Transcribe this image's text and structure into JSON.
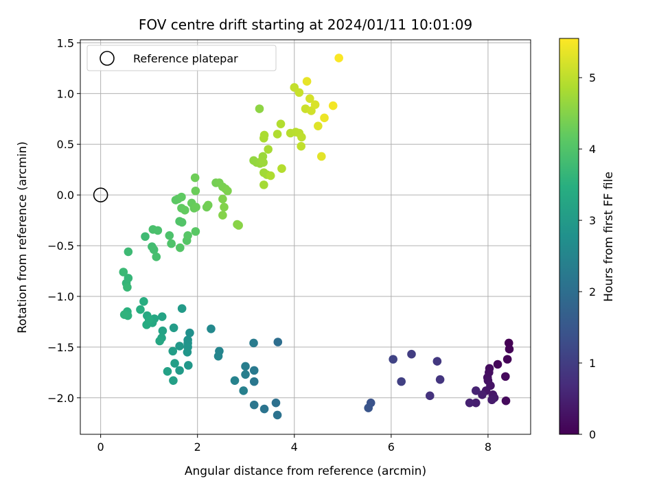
{
  "chart_data": {
    "type": "scatter",
    "title": "FOV centre drift starting at 2024/01/11 10:01:09",
    "xlabel": "Angular distance from reference (arcmin)",
    "ylabel": "Rotation from reference (arcmin)",
    "xlim": [
      -0.42,
      8.88
    ],
    "ylim": [
      -2.36,
      1.53
    ],
    "xticks": [
      "0",
      "2",
      "4",
      "6",
      "8"
    ],
    "yticks": [
      "−2.0",
      "−1.5",
      "−1.0",
      "−0.5",
      "0.0",
      "0.5",
      "1.0",
      "1.5"
    ],
    "grid": true,
    "legend": {
      "label": "Reference platepar",
      "placement": "top-left"
    },
    "reference_point": {
      "x": 0.0,
      "y": 0.0
    },
    "colorbar": {
      "label": "Hours from first FF file",
      "colormap": "viridis",
      "range": [
        0,
        5.55
      ],
      "ticks": [
        "0",
        "1",
        "2",
        "3",
        "4",
        "5"
      ]
    },
    "points": [
      {
        "x": 8.43,
        "y": -1.46,
        "t": 0.0
      },
      {
        "x": 8.44,
        "y": -1.52,
        "t": 0.03
      },
      {
        "x": 8.4,
        "y": -1.62,
        "t": 0.06
      },
      {
        "x": 8.2,
        "y": -1.67,
        "t": 0.09
      },
      {
        "x": 8.36,
        "y": -1.79,
        "t": 0.12
      },
      {
        "x": 8.37,
        "y": -2.03,
        "t": 0.15
      },
      {
        "x": 8.03,
        "y": -1.71,
        "t": 0.18
      },
      {
        "x": 8.02,
        "y": -1.75,
        "t": 0.21
      },
      {
        "x": 7.99,
        "y": -1.8,
        "t": 0.24
      },
      {
        "x": 8.0,
        "y": -1.83,
        "t": 0.27
      },
      {
        "x": 8.05,
        "y": -1.88,
        "t": 0.3
      },
      {
        "x": 7.96,
        "y": -1.93,
        "t": 0.33
      },
      {
        "x": 8.1,
        "y": -1.97,
        "t": 0.36
      },
      {
        "x": 8.13,
        "y": -2.0,
        "t": 0.39
      },
      {
        "x": 8.08,
        "y": -2.02,
        "t": 0.42
      },
      {
        "x": 7.88,
        "y": -1.97,
        "t": 0.45
      },
      {
        "x": 7.75,
        "y": -2.05,
        "t": 0.48
      },
      {
        "x": 7.62,
        "y": -2.05,
        "t": 0.51
      },
      {
        "x": 7.75,
        "y": -1.93,
        "t": 0.54
      },
      {
        "x": 6.8,
        "y": -1.98,
        "t": 0.8
      },
      {
        "x": 7.01,
        "y": -1.82,
        "t": 0.85
      },
      {
        "x": 6.95,
        "y": -1.64,
        "t": 0.9
      },
      {
        "x": 6.42,
        "y": -1.57,
        "t": 1.0
      },
      {
        "x": 6.21,
        "y": -1.84,
        "t": 1.05
      },
      {
        "x": 6.04,
        "y": -1.62,
        "t": 1.1
      },
      {
        "x": 5.58,
        "y": -2.05,
        "t": 1.4
      },
      {
        "x": 5.53,
        "y": -2.1,
        "t": 1.45
      },
      {
        "x": 3.66,
        "y": -1.45,
        "t": 2.0
      },
      {
        "x": 3.62,
        "y": -2.05,
        "t": 2.05
      },
      {
        "x": 3.65,
        "y": -2.17,
        "t": 2.08
      },
      {
        "x": 3.38,
        "y": -2.11,
        "t": 2.12
      },
      {
        "x": 3.17,
        "y": -2.07,
        "t": 2.16
      },
      {
        "x": 3.17,
        "y": -1.84,
        "t": 2.2
      },
      {
        "x": 3.17,
        "y": -1.73,
        "t": 2.24
      },
      {
        "x": 3.16,
        "y": -1.46,
        "t": 2.28
      },
      {
        "x": 2.99,
        "y": -1.69,
        "t": 2.32
      },
      {
        "x": 2.99,
        "y": -1.77,
        "t": 2.36
      },
      {
        "x": 2.95,
        "y": -1.93,
        "t": 2.4
      },
      {
        "x": 2.77,
        "y": -1.83,
        "t": 2.44
      },
      {
        "x": 2.45,
        "y": -1.54,
        "t": 2.5
      },
      {
        "x": 2.43,
        "y": -1.59,
        "t": 2.54
      },
      {
        "x": 2.28,
        "y": -1.32,
        "t": 2.6
      },
      {
        "x": 1.84,
        "y": -1.36,
        "t": 2.75
      },
      {
        "x": 1.8,
        "y": -1.43,
        "t": 2.8
      },
      {
        "x": 1.8,
        "y": -1.46,
        "t": 2.83
      },
      {
        "x": 1.8,
        "y": -1.5,
        "t": 2.86
      },
      {
        "x": 1.79,
        "y": -1.55,
        "t": 2.89
      },
      {
        "x": 1.81,
        "y": -1.68,
        "t": 2.92
      },
      {
        "x": 1.63,
        "y": -1.49,
        "t": 2.95
      },
      {
        "x": 1.63,
        "y": -1.73,
        "t": 2.98
      },
      {
        "x": 1.68,
        "y": -1.12,
        "t": 3.0
      },
      {
        "x": 1.51,
        "y": -1.31,
        "t": 3.03
      },
      {
        "x": 1.49,
        "y": -1.54,
        "t": 3.06
      },
      {
        "x": 1.53,
        "y": -1.66,
        "t": 3.09
      },
      {
        "x": 1.5,
        "y": -1.83,
        "t": 3.12
      },
      {
        "x": 1.38,
        "y": -1.74,
        "t": 3.15
      },
      {
        "x": 1.28,
        "y": -1.34,
        "t": 3.18
      },
      {
        "x": 1.27,
        "y": -1.2,
        "t": 3.21
      },
      {
        "x": 1.26,
        "y": -1.41,
        "t": 3.24
      },
      {
        "x": 1.22,
        "y": -1.44,
        "t": 3.27
      },
      {
        "x": 1.11,
        "y": -1.22,
        "t": 3.3
      },
      {
        "x": 1.07,
        "y": -1.26,
        "t": 3.33
      },
      {
        "x": 0.96,
        "y": -1.19,
        "t": 3.36
      },
      {
        "x": 0.95,
        "y": -1.28,
        "t": 3.39
      },
      {
        "x": 1.0,
        "y": -1.23,
        "t": 3.42
      },
      {
        "x": 0.89,
        "y": -1.05,
        "t": 3.45
      },
      {
        "x": 0.82,
        "y": -1.13,
        "t": 3.48
      },
      {
        "x": 0.55,
        "y": -1.15,
        "t": 3.51
      },
      {
        "x": 0.56,
        "y": -1.19,
        "t": 3.54
      },
      {
        "x": 0.49,
        "y": -1.18,
        "t": 3.57
      },
      {
        "x": 0.53,
        "y": -0.87,
        "t": 3.62
      },
      {
        "x": 0.57,
        "y": -0.82,
        "t": 3.66
      },
      {
        "x": 0.55,
        "y": -0.91,
        "t": 3.69
      },
      {
        "x": 0.47,
        "y": -0.76,
        "t": 3.72
      },
      {
        "x": 0.57,
        "y": -0.56,
        "t": 3.75
      },
      {
        "x": 0.92,
        "y": -0.41,
        "t": 3.78
      },
      {
        "x": 1.06,
        "y": -0.51,
        "t": 3.81
      },
      {
        "x": 1.1,
        "y": -0.54,
        "t": 3.84
      },
      {
        "x": 1.15,
        "y": -0.61,
        "t": 3.87
      },
      {
        "x": 1.08,
        "y": -0.34,
        "t": 3.9
      },
      {
        "x": 1.18,
        "y": -0.35,
        "t": 3.92
      },
      {
        "x": 1.42,
        "y": -0.4,
        "t": 3.95
      },
      {
        "x": 1.46,
        "y": -0.48,
        "t": 3.97
      },
      {
        "x": 1.63,
        "y": -0.26,
        "t": 4.0
      },
      {
        "x": 1.68,
        "y": -0.27,
        "t": 4.02
      },
      {
        "x": 1.64,
        "y": -0.52,
        "t": 4.04
      },
      {
        "x": 1.78,
        "y": -0.45,
        "t": 4.06
      },
      {
        "x": 1.8,
        "y": -0.4,
        "t": 4.08
      },
      {
        "x": 1.96,
        "y": -0.36,
        "t": 4.1
      },
      {
        "x": 1.55,
        "y": -0.05,
        "t": 4.12
      },
      {
        "x": 1.6,
        "y": -0.04,
        "t": 4.14
      },
      {
        "x": 1.67,
        "y": -0.02,
        "t": 4.16
      },
      {
        "x": 1.67,
        "y": -0.13,
        "t": 4.18
      },
      {
        "x": 1.74,
        "y": -0.15,
        "t": 4.2
      },
      {
        "x": 1.88,
        "y": -0.08,
        "t": 4.22
      },
      {
        "x": 1.93,
        "y": -0.13,
        "t": 4.24
      },
      {
        "x": 1.97,
        "y": -0.12,
        "t": 4.26
      },
      {
        "x": 1.96,
        "y": 0.04,
        "t": 4.28
      },
      {
        "x": 1.95,
        "y": 0.17,
        "t": 4.3
      },
      {
        "x": 2.19,
        "y": -0.12,
        "t": 4.32
      },
      {
        "x": 2.22,
        "y": -0.1,
        "t": 4.34
      },
      {
        "x": 2.38,
        "y": 0.12,
        "t": 4.36
      },
      {
        "x": 2.45,
        "y": 0.12,
        "t": 4.38
      },
      {
        "x": 2.52,
        "y": 0.08,
        "t": 4.4
      },
      {
        "x": 2.58,
        "y": 0.06,
        "t": 4.42
      },
      {
        "x": 2.62,
        "y": 0.04,
        "t": 4.44
      },
      {
        "x": 2.52,
        "y": -0.04,
        "t": 4.46
      },
      {
        "x": 2.55,
        "y": -0.12,
        "t": 4.48
      },
      {
        "x": 2.52,
        "y": -0.2,
        "t": 4.5
      },
      {
        "x": 2.82,
        "y": -0.29,
        "t": 4.52
      },
      {
        "x": 2.85,
        "y": -0.3,
        "t": 4.54
      },
      {
        "x": 3.28,
        "y": 0.85,
        "t": 4.58
      },
      {
        "x": 3.16,
        "y": 0.34,
        "t": 4.62
      },
      {
        "x": 3.22,
        "y": 0.32,
        "t": 4.64
      },
      {
        "x": 3.29,
        "y": 0.31,
        "t": 4.66
      },
      {
        "x": 3.33,
        "y": 0.34,
        "t": 4.68
      },
      {
        "x": 3.35,
        "y": 0.38,
        "t": 4.7
      },
      {
        "x": 3.36,
        "y": 0.32,
        "t": 4.72
      },
      {
        "x": 3.37,
        "y": 0.22,
        "t": 4.74
      },
      {
        "x": 3.43,
        "y": 0.2,
        "t": 4.76
      },
      {
        "x": 3.37,
        "y": 0.1,
        "t": 4.78
      },
      {
        "x": 3.46,
        "y": 0.45,
        "t": 4.8
      },
      {
        "x": 3.37,
        "y": 0.56,
        "t": 4.82
      },
      {
        "x": 3.38,
        "y": 0.59,
        "t": 4.84
      },
      {
        "x": 3.51,
        "y": 0.19,
        "t": 4.86
      },
      {
        "x": 3.65,
        "y": 0.6,
        "t": 4.88
      },
      {
        "x": 3.72,
        "y": 0.7,
        "t": 4.9
      },
      {
        "x": 3.74,
        "y": 0.26,
        "t": 4.92
      },
      {
        "x": 3.92,
        "y": 0.61,
        "t": 4.94
      },
      {
        "x": 4.03,
        "y": 0.62,
        "t": 4.96
      },
      {
        "x": 4.1,
        "y": 0.61,
        "t": 4.98
      },
      {
        "x": 4.15,
        "y": 0.57,
        "t": 5.0
      },
      {
        "x": 4.14,
        "y": 0.48,
        "t": 5.02
      },
      {
        "x": 4.0,
        "y": 1.06,
        "t": 5.05
      },
      {
        "x": 4.1,
        "y": 1.01,
        "t": 5.08
      },
      {
        "x": 4.23,
        "y": 0.85,
        "t": 5.12
      },
      {
        "x": 4.35,
        "y": 0.83,
        "t": 5.16
      },
      {
        "x": 4.32,
        "y": 0.95,
        "t": 5.2
      },
      {
        "x": 4.43,
        "y": 0.89,
        "t": 5.24
      },
      {
        "x": 4.49,
        "y": 0.68,
        "t": 5.28
      },
      {
        "x": 4.56,
        "y": 0.38,
        "t": 5.32
      },
      {
        "x": 4.26,
        "y": 1.12,
        "t": 5.36
      },
      {
        "x": 4.62,
        "y": 0.76,
        "t": 5.4
      },
      {
        "x": 4.8,
        "y": 0.88,
        "t": 5.46
      },
      {
        "x": 4.92,
        "y": 1.35,
        "t": 5.52
      }
    ]
  }
}
